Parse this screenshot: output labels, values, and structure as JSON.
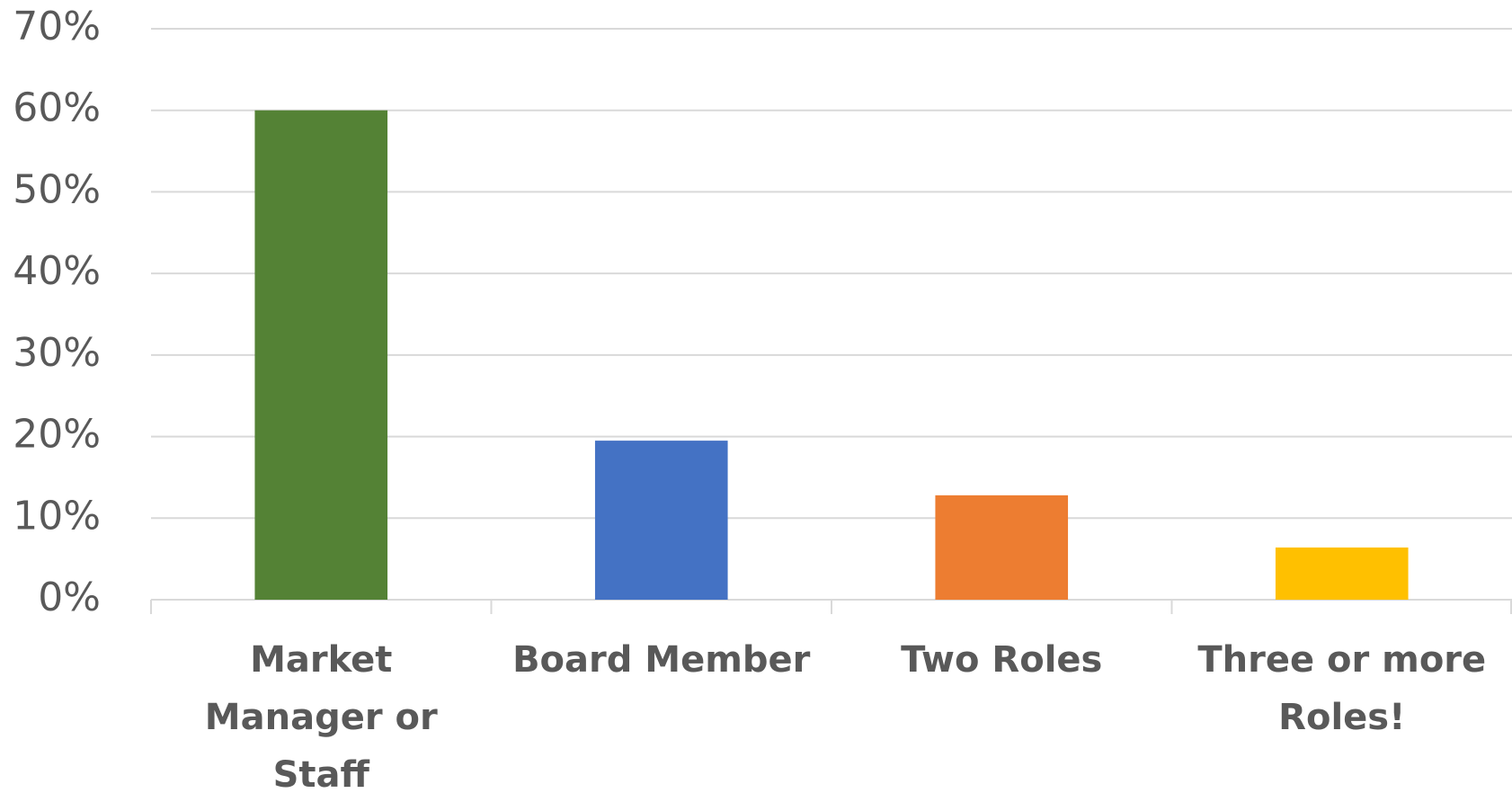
{
  "chart_data": {
    "type": "bar",
    "categories": [
      "Market Manager or Staff",
      "Board Member",
      "Two Roles",
      "Three or more Roles!"
    ],
    "values": [
      60,
      19.5,
      12.8,
      6.4
    ],
    "colors": [
      "#548235",
      "#4472c4",
      "#ed7d31",
      "#ffc000"
    ],
    "ylim": [
      0,
      70
    ],
    "yticks": [
      {
        "value": 0,
        "label": "0%"
      },
      {
        "value": 10,
        "label": "10%"
      },
      {
        "value": 20,
        "label": "20%"
      },
      {
        "value": 30,
        "label": "30%"
      },
      {
        "value": 40,
        "label": "40%"
      },
      {
        "value": 50,
        "label": "50%"
      },
      {
        "value": 60,
        "label": "60%"
      },
      {
        "value": 70,
        "label": "70%"
      }
    ],
    "grid": true
  }
}
